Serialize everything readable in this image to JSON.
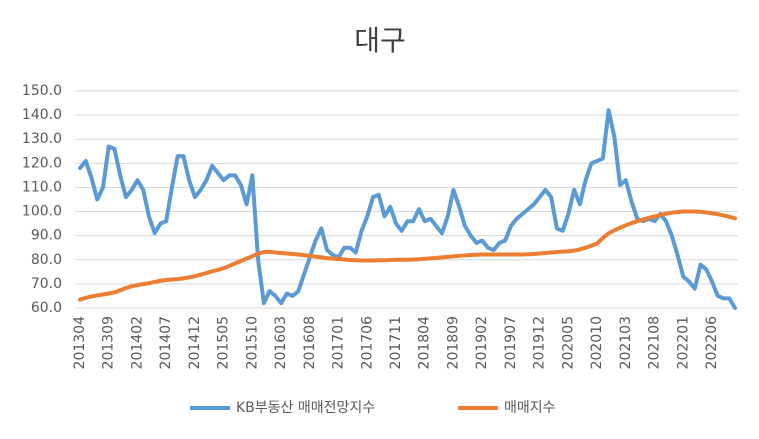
{
  "chart_data": {
    "type": "line",
    "title": "대구",
    "categories": [
      "201304",
      null,
      null,
      null,
      null,
      "201309",
      null,
      null,
      null,
      null,
      "201402",
      null,
      null,
      null,
      null,
      "201407",
      null,
      null,
      null,
      null,
      "201412",
      null,
      null,
      null,
      null,
      "201505",
      null,
      null,
      null,
      null,
      "201510",
      null,
      null,
      null,
      null,
      "201603",
      null,
      null,
      null,
      null,
      "201608",
      null,
      null,
      null,
      null,
      "201701",
      null,
      null,
      null,
      null,
      "201706",
      null,
      null,
      null,
      null,
      "201711",
      null,
      null,
      null,
      null,
      "201804",
      null,
      null,
      null,
      null,
      "201809",
      null,
      null,
      null,
      null,
      "201902",
      null,
      null,
      null,
      null,
      "201907",
      null,
      null,
      null,
      null,
      "201912",
      null,
      null,
      null,
      null,
      "202005",
      null,
      null,
      null,
      null,
      "202010",
      null,
      null,
      null,
      null,
      "202103",
      null,
      null,
      null,
      null,
      "202108",
      null,
      null,
      null,
      null,
      "202201",
      null,
      null,
      null,
      null,
      "202206",
      null,
      null,
      null,
      null
    ],
    "series": [
      {
        "name": "KB부동산 매매전망지수",
        "color": "#5b9bd5",
        "values": [
          118,
          121,
          114,
          105,
          110,
          127,
          126,
          115,
          106,
          109,
          113,
          109,
          98,
          91,
          95,
          96,
          110,
          123,
          123,
          113,
          106,
          109,
          113,
          119,
          116,
          113,
          115,
          115,
          111,
          103,
          115,
          80,
          62,
          67,
          65,
          62,
          66,
          65,
          67,
          74,
          81,
          88,
          93,
          84,
          82,
          81,
          85,
          85,
          83,
          92,
          98,
          106,
          107,
          98,
          102,
          95,
          92,
          96,
          96,
          101,
          96,
          97,
          94,
          91,
          98,
          109,
          102,
          94,
          90,
          87,
          88,
          85,
          84,
          87,
          88,
          94,
          97,
          99,
          101,
          103,
          106,
          109,
          106,
          93,
          92,
          99,
          109,
          103,
          113,
          120,
          121,
          122,
          142,
          131,
          111,
          113,
          104,
          97,
          96,
          97,
          96,
          99,
          96,
          90,
          82,
          73,
          71,
          68,
          78,
          76,
          71,
          65,
          64,
          64,
          60
        ]
      },
      {
        "name": "매매지수",
        "color": "#ed7d31",
        "values": [
          63.5,
          64.2,
          64.8,
          65.2,
          65.6,
          66.0,
          66.5,
          67.3,
          68.3,
          69.0,
          69.5,
          69.9,
          70.3,
          70.8,
          71.3,
          71.6,
          71.8,
          72.0,
          72.3,
          72.7,
          73.2,
          73.8,
          74.5,
          75.2,
          75.8,
          76.5,
          77.5,
          78.5,
          79.5,
          80.5,
          81.5,
          82.5,
          83.2,
          83.3,
          83.0,
          82.8,
          82.6,
          82.4,
          82.2,
          81.9,
          81.6,
          81.3,
          81.0,
          80.7,
          80.5,
          80.3,
          80.1,
          79.9,
          79.8,
          79.7,
          79.7,
          79.7,
          79.8,
          79.8,
          79.9,
          80.0,
          80.0,
          80.0,
          80.1,
          80.2,
          80.4,
          80.6,
          80.8,
          81.0,
          81.2,
          81.4,
          81.6,
          81.8,
          82.0,
          82.1,
          82.2,
          82.2,
          82.2,
          82.2,
          82.2,
          82.2,
          82.2,
          82.2,
          82.3,
          82.4,
          82.6,
          82.8,
          83.0,
          83.2,
          83.4,
          83.5,
          83.8,
          84.3,
          85.0,
          85.8,
          86.8,
          89.0,
          91.0,
          92.2,
          93.3,
          94.3,
          95.2,
          96.0,
          96.7,
          97.4,
          98.0,
          98.6,
          99.1,
          99.5,
          99.8,
          100.0,
          100.0,
          100.0,
          99.9,
          99.6,
          99.3,
          98.9,
          98.4,
          97.8,
          97.2
        ]
      }
    ],
    "ylim": [
      60,
      150
    ],
    "yticks": [
      {
        "value": 60,
        "label": "60.0"
      },
      {
        "value": 70,
        "label": "70.0"
      },
      {
        "value": 80,
        "label": "80.0"
      },
      {
        "value": 90,
        "label": "90.0"
      },
      {
        "value": 100,
        "label": "100.0"
      },
      {
        "value": 110,
        "label": "110.0"
      },
      {
        "value": 120,
        "label": "120.0"
      },
      {
        "value": 130,
        "label": "130.0"
      },
      {
        "value": 140,
        "label": "140.0"
      },
      {
        "value": 150,
        "label": "150.0"
      }
    ],
    "grid": true,
    "legend": "bottom"
  }
}
